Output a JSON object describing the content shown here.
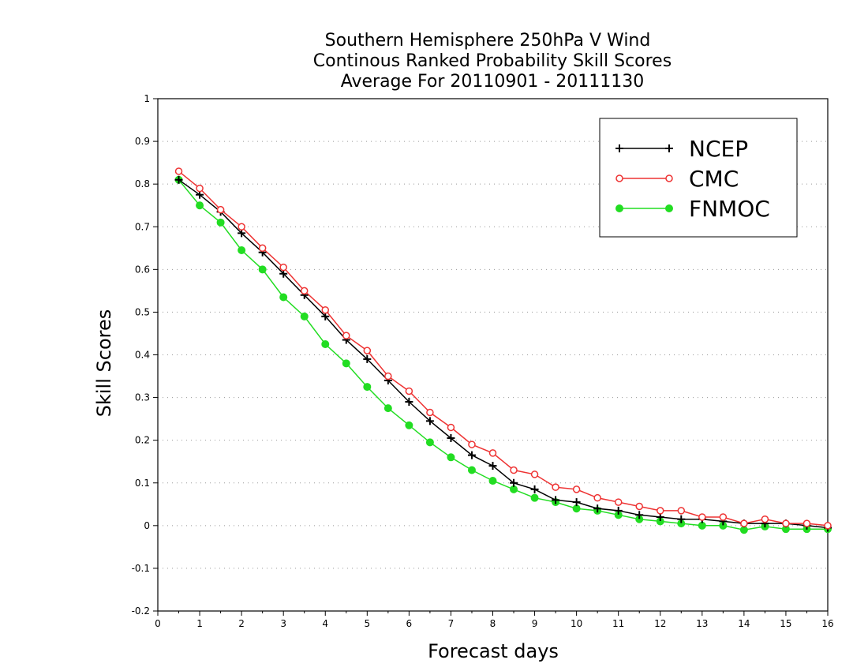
{
  "chart_data": {
    "type": "line",
    "title": [
      "Southern Hemisphere 250hPa V Wind",
      "Continous Ranked Probability Skill Scores",
      "Average For 20110901 - 20111130"
    ],
    "xlabel": "Forecast days",
    "ylabel": "Skill Scores",
    "xlim": [
      0,
      16
    ],
    "ylim": [
      -0.2,
      1
    ],
    "xticks": [
      "0",
      "1",
      "2",
      "3",
      "4",
      "5",
      "6",
      "7",
      "8",
      "9",
      "10",
      "11",
      "12",
      "13",
      "14",
      "15",
      "16"
    ],
    "yticks": [
      "-0.2",
      "-0.1",
      "0",
      "0.1",
      "0.2",
      "0.3",
      "0.4",
      "0.5",
      "0.6",
      "0.7",
      "0.8",
      "0.9",
      "1"
    ],
    "grid": "horizontal dotted",
    "legend_position": "top-right",
    "x": [
      0.5,
      1,
      1.5,
      2,
      2.5,
      3,
      3.5,
      4,
      4.5,
      5,
      5.5,
      6,
      6.5,
      7,
      7.5,
      8,
      8.5,
      9,
      9.5,
      10,
      10.5,
      11,
      11.5,
      12,
      12.5,
      13,
      13.5,
      14,
      14.5,
      15,
      15.5,
      16
    ],
    "series": [
      {
        "name": "NCEP",
        "color": "#000000",
        "marker": "plus",
        "values": [
          0.81,
          0.775,
          0.735,
          0.685,
          0.64,
          0.59,
          0.54,
          0.49,
          0.435,
          0.39,
          0.34,
          0.29,
          0.245,
          0.205,
          0.165,
          0.14,
          0.1,
          0.085,
          0.06,
          0.055,
          0.04,
          0.035,
          0.025,
          0.02,
          0.015,
          0.015,
          0.01,
          0.005,
          0.005,
          0.005,
          0.0,
          -0.005
        ]
      },
      {
        "name": "CMC",
        "color": "#ee3333",
        "marker": "open-circle",
        "values": [
          0.83,
          0.79,
          0.74,
          0.7,
          0.65,
          0.605,
          0.55,
          0.505,
          0.445,
          0.41,
          0.35,
          0.315,
          0.265,
          0.23,
          0.19,
          0.17,
          0.13,
          0.12,
          0.09,
          0.085,
          0.065,
          0.055,
          0.045,
          0.035,
          0.035,
          0.02,
          0.02,
          0.005,
          0.015,
          0.005,
          0.005,
          0.0
        ]
      },
      {
        "name": "FNMOC",
        "color": "#22dd22",
        "marker": "filled-circle",
        "values": [
          0.81,
          0.75,
          0.71,
          0.645,
          0.6,
          0.535,
          0.49,
          0.425,
          0.38,
          0.325,
          0.275,
          0.235,
          0.195,
          0.16,
          0.13,
          0.105,
          0.085,
          0.065,
          0.055,
          0.04,
          0.035,
          0.025,
          0.015,
          0.01,
          0.005,
          0.0,
          0.0,
          -0.01,
          -0.002,
          -0.008,
          -0.008,
          -0.008
        ]
      }
    ]
  }
}
